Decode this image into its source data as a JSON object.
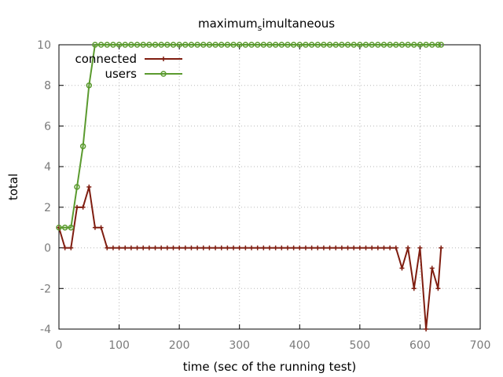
{
  "chart_data": {
    "type": "line",
    "title": "maximum_simultaneous",
    "title_main_a": "maximum",
    "title_sub": "s",
    "title_main_b": "imultaneous",
    "xlabel": "time (sec of the running test)",
    "ylabel": "total",
    "xlim": [
      0,
      700
    ],
    "ylim": [
      -4,
      10
    ],
    "xticks": [
      "0",
      "100",
      "200",
      "300",
      "400",
      "500",
      "600",
      "700"
    ],
    "yticks": [
      "-4",
      "-2",
      "0",
      "2",
      "4",
      "6",
      "8",
      "10"
    ],
    "grid": true,
    "legend_position": "top-left",
    "series": [
      {
        "name": "connected",
        "color": "#7f1d10",
        "marker": "plus",
        "x": [
          0,
          10,
          20,
          30,
          40,
          50,
          60,
          70,
          80,
          90,
          100,
          110,
          120,
          130,
          140,
          150,
          160,
          170,
          180,
          190,
          200,
          210,
          220,
          230,
          240,
          250,
          260,
          270,
          280,
          290,
          300,
          310,
          320,
          330,
          340,
          350,
          360,
          370,
          380,
          390,
          400,
          410,
          420,
          430,
          440,
          450,
          460,
          470,
          480,
          490,
          500,
          510,
          520,
          530,
          540,
          550,
          560,
          570,
          580,
          590,
          600,
          610,
          620,
          630,
          635
        ],
        "y": [
          1,
          0,
          0,
          2,
          2,
          3,
          1,
          1,
          0,
          0,
          0,
          0,
          0,
          0,
          0,
          0,
          0,
          0,
          0,
          0,
          0,
          0,
          0,
          0,
          0,
          0,
          0,
          0,
          0,
          0,
          0,
          0,
          0,
          0,
          0,
          0,
          0,
          0,
          0,
          0,
          0,
          0,
          0,
          0,
          0,
          0,
          0,
          0,
          0,
          0,
          0,
          0,
          0,
          0,
          0,
          0,
          0,
          -1,
          0,
          -2,
          0,
          -4,
          -1,
          -2,
          0
        ]
      },
      {
        "name": "users",
        "color": "#5a9a2e",
        "marker": "circle",
        "x": [
          0,
          10,
          20,
          30,
          40,
          50,
          60,
          70,
          80,
          90,
          100,
          110,
          120,
          130,
          140,
          150,
          160,
          170,
          180,
          190,
          200,
          210,
          220,
          230,
          240,
          250,
          260,
          270,
          280,
          290,
          300,
          310,
          320,
          330,
          340,
          350,
          360,
          370,
          380,
          390,
          400,
          410,
          420,
          430,
          440,
          450,
          460,
          470,
          480,
          490,
          500,
          510,
          520,
          530,
          540,
          550,
          560,
          570,
          580,
          590,
          600,
          610,
          620,
          630,
          635
        ],
        "y": [
          1,
          1,
          1,
          3,
          5,
          8,
          10,
          10,
          10,
          10,
          10,
          10,
          10,
          10,
          10,
          10,
          10,
          10,
          10,
          10,
          10,
          10,
          10,
          10,
          10,
          10,
          10,
          10,
          10,
          10,
          10,
          10,
          10,
          10,
          10,
          10,
          10,
          10,
          10,
          10,
          10,
          10,
          10,
          10,
          10,
          10,
          10,
          10,
          10,
          10,
          10,
          10,
          10,
          10,
          10,
          10,
          10,
          10,
          10,
          10,
          10,
          10,
          10,
          10,
          10
        ]
      }
    ]
  }
}
